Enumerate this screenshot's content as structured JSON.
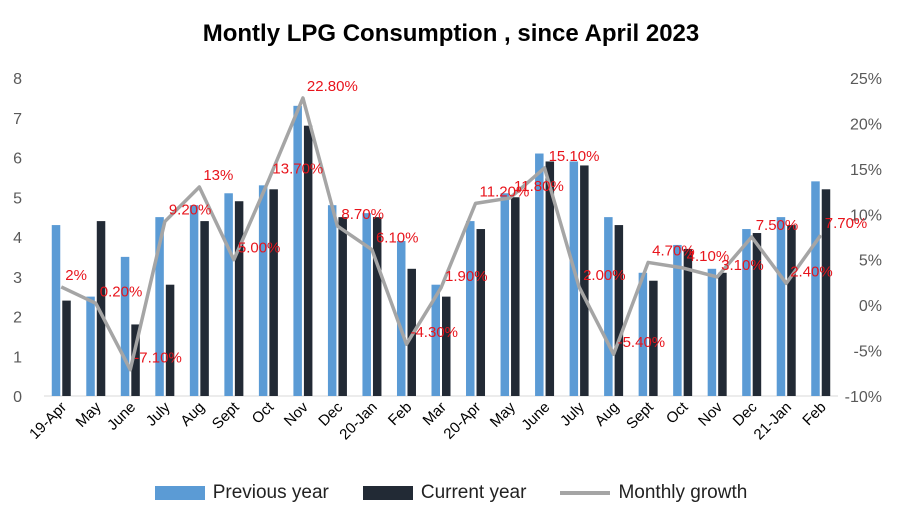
{
  "colors": {
    "previous": "#5b9bd5",
    "current": "#222a35",
    "growth": "#a5a5a5",
    "growth_labels": "#e8141c",
    "axis_text": "#595959",
    "grid": "#d9d9d9"
  },
  "chart_data": {
    "type": "bar",
    "title": "Montly LPG Consumption , since April 2023",
    "categories": [
      "19-Apr",
      "May",
      "June",
      "July",
      "Aug",
      "Sept",
      "Oct",
      "Nov",
      "Dec",
      "20-Jan",
      "Feb",
      "Mar",
      "20-Apr",
      "May",
      "June",
      "July",
      "Aug",
      "Sept",
      "Oct",
      "Nov",
      "Dec",
      "21-Jan",
      "Feb"
    ],
    "series": [
      {
        "name": "Previous year",
        "values": [
          4.3,
          2.5,
          3.5,
          4.5,
          4.8,
          5.1,
          5.3,
          7.3,
          4.8,
          4.6,
          3.9,
          2.8,
          4.4,
          5.1,
          6.1,
          5.9,
          4.5,
          3.1,
          3.8,
          3.2,
          4.2,
          4.5,
          5.4
        ]
      },
      {
        "name": "Current year",
        "values": [
          2.4,
          4.4,
          1.8,
          2.8,
          4.4,
          4.9,
          5.2,
          6.8,
          4.5,
          4.5,
          3.2,
          2.5,
          4.2,
          5.0,
          5.9,
          5.8,
          4.3,
          2.9,
          3.7,
          3.1,
          4.1,
          4.3,
          5.2
        ]
      },
      {
        "name": "Monthly growth",
        "axis": "secondary",
        "values": [
          2.0,
          0.2,
          -7.1,
          9.2,
          13.0,
          5.0,
          13.7,
          22.8,
          8.7,
          6.1,
          -4.3,
          1.9,
          11.2,
          11.8,
          15.1,
          2.0,
          -5.4,
          4.7,
          4.1,
          3.1,
          7.5,
          2.4,
          7.7
        ]
      }
    ],
    "growth_labels": [
      "2%",
      "0.20%",
      "-7.10%",
      "9.20%",
      "13%",
      "5.00%",
      "13.70%",
      "22.80%",
      "8.70%",
      "6.10%",
      "-4.30%",
      "1.90%",
      "11.20%",
      "11.80%",
      "15.10%",
      "2.00%",
      "-5.40%",
      "4.70%",
      "4.10%",
      "3.10%",
      "7.50%",
      "2.40%",
      "7.70%"
    ],
    "y_ticks": [
      "0",
      "1",
      "2",
      "3",
      "4",
      "5",
      "6",
      "7",
      "8"
    ],
    "y2_ticks": [
      "-10%",
      "-5%",
      "0%",
      "5%",
      "10%",
      "15%",
      "20%",
      "25%"
    ],
    "ylim": [
      0,
      8
    ],
    "y2lim": [
      -10,
      25
    ],
    "xlabel": "",
    "ylabel": "",
    "grid": false,
    "legend_position": "bottom"
  }
}
